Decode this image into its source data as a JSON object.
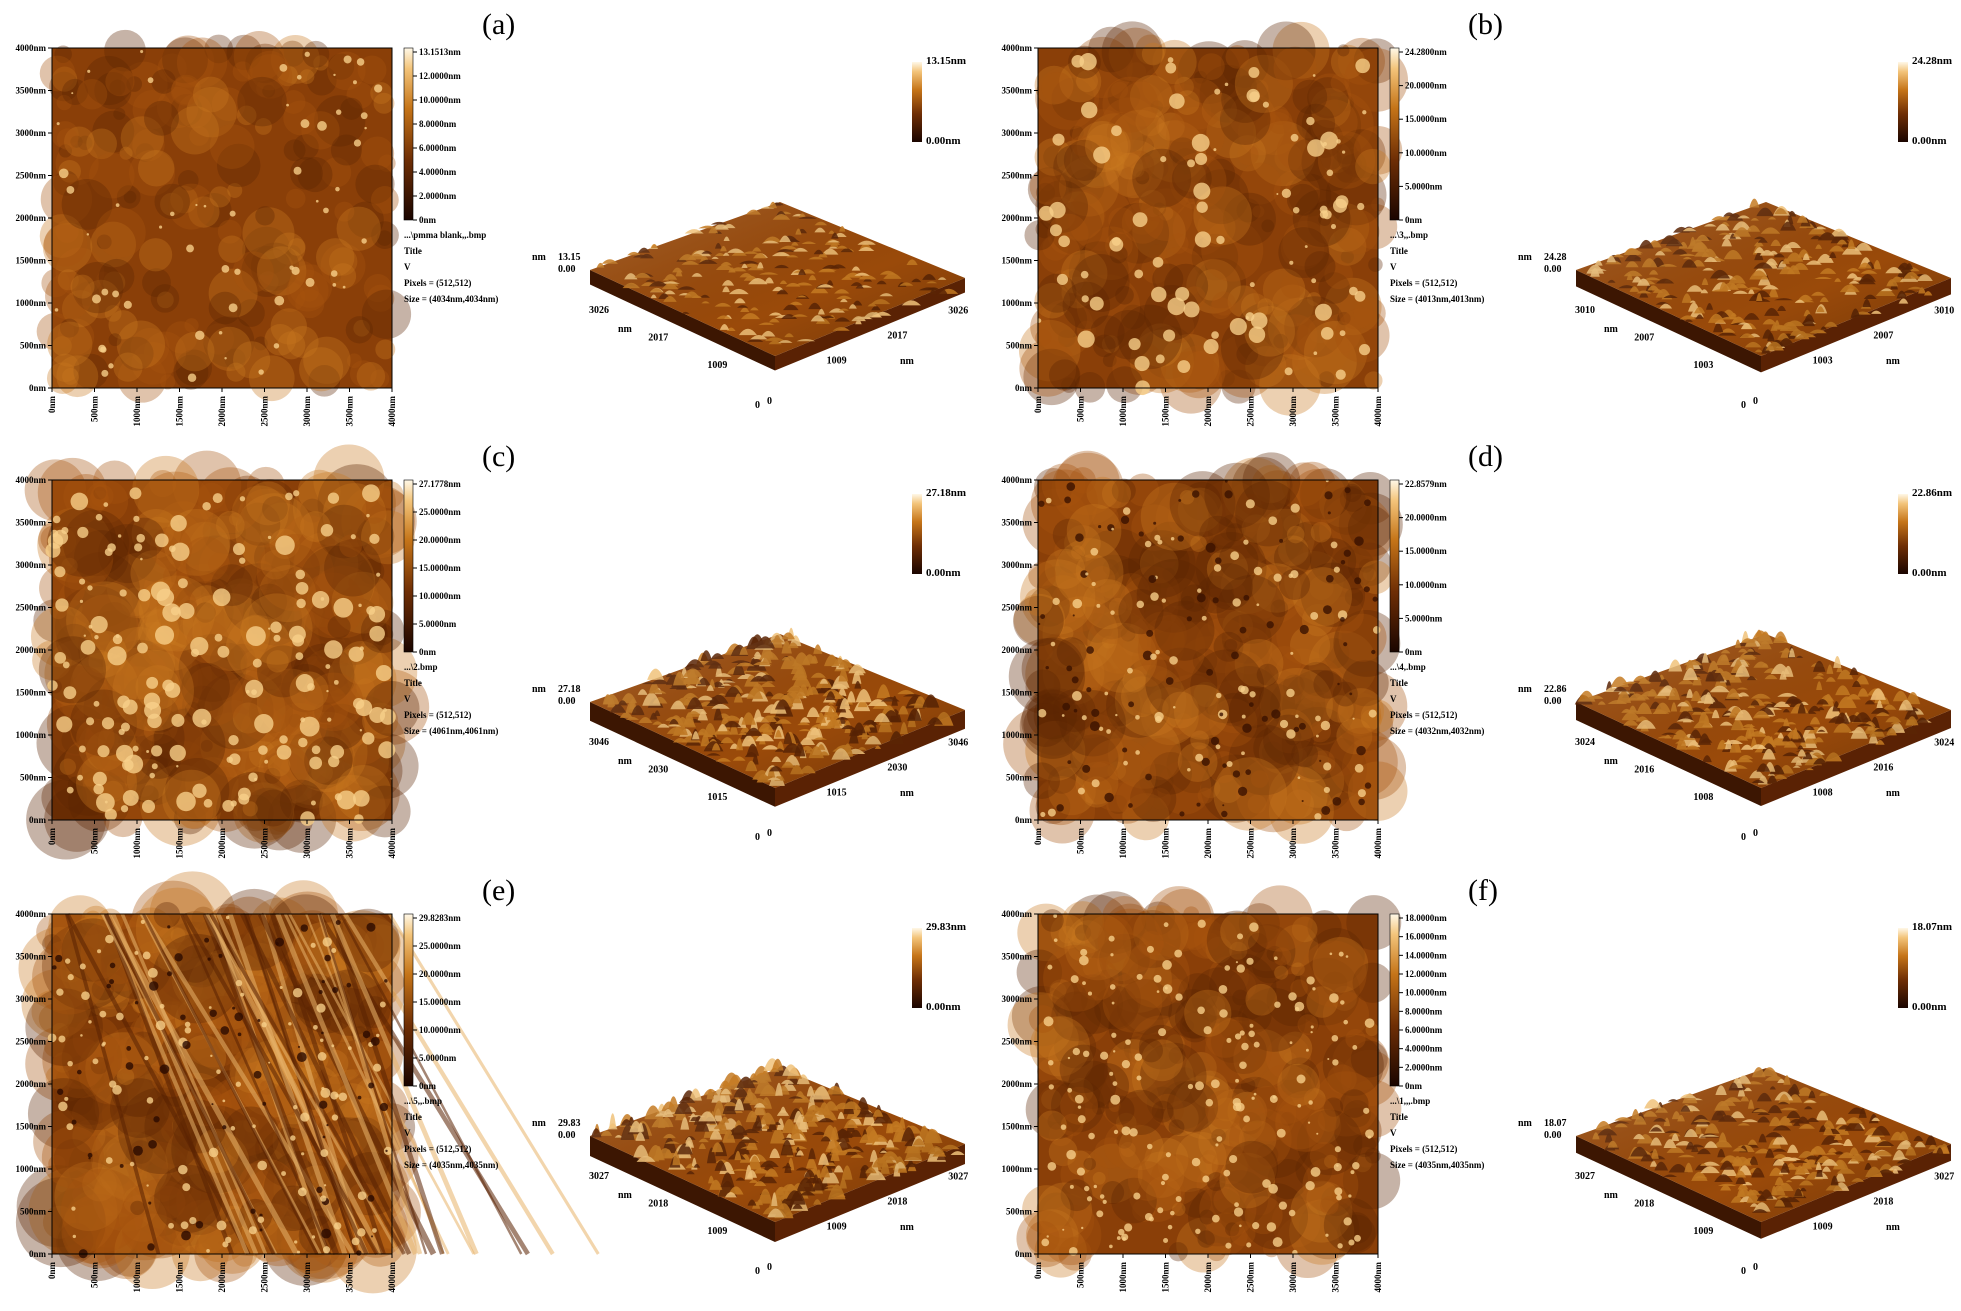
{
  "panels": [
    {
      "letter": "(a)",
      "y_ticks": [
        "4000nm",
        "3500nm",
        "3000nm",
        "2500nm",
        "2000nm",
        "1500nm",
        "1000nm",
        "500nm",
        "0nm"
      ],
      "x_ticks": [
        "0nm",
        "500nm",
        "1000nm",
        "1500nm",
        "2000nm",
        "2500nm",
        "3000nm",
        "3500nm",
        "4000nm"
      ],
      "cbar_labels": [
        "13.1513nm",
        "12.0000nm",
        "10.0000nm",
        "8.0000nm",
        "6.0000nm",
        "4.0000nm",
        "2.0000nm",
        "0nm"
      ],
      "info": [
        "...\\pmma blank,,.bmp",
        "Title",
        "V",
        "Pixels = (512,512)",
        "Size = (4034nm,4034nm)"
      ],
      "max_label": "13.15nm",
      "min_label": "0.00nm",
      "z_labels": [
        "13.15",
        "0.00"
      ],
      "axis_ticks": [
        "3026",
        "2017",
        "1009"
      ],
      "roughness": 0.32,
      "particles": "few"
    },
    {
      "letter": "(b)",
      "y_ticks": [
        "4000nm",
        "3500nm",
        "3000nm",
        "2500nm",
        "2000nm",
        "1500nm",
        "1000nm",
        "500nm",
        "0nm"
      ],
      "x_ticks": [
        "0nm",
        "500nm",
        "1000nm",
        "1500nm",
        "2000nm",
        "2500nm",
        "3000nm",
        "3500nm",
        "4000nm"
      ],
      "cbar_labels": [
        "24.2800nm",
        "20.0000nm",
        "15.0000nm",
        "10.0000nm",
        "5.0000nm",
        "0nm"
      ],
      "info": [
        "...\\3,,.bmp",
        "Title",
        "V",
        "Pixels = (512,512)",
        "Size = (4013nm,4013nm)"
      ],
      "max_label": "24.28nm",
      "min_label": "0.00nm",
      "z_labels": [
        "24.28",
        "0.00"
      ],
      "axis_ticks": [
        "3010",
        "2007",
        "1003"
      ],
      "roughness": 0.55,
      "particles": "blobs"
    },
    {
      "letter": "(c)",
      "y_ticks": [
        "4000nm",
        "3500nm",
        "3000nm",
        "2500nm",
        "2000nm",
        "1500nm",
        "1000nm",
        "500nm",
        "0nm"
      ],
      "x_ticks": [
        "0nm",
        "500nm",
        "1000nm",
        "1500nm",
        "2000nm",
        "2500nm",
        "3000nm",
        "3500nm",
        "4000nm"
      ],
      "cbar_labels": [
        "27.1778nm",
        "25.0000nm",
        "20.0000nm",
        "15.0000nm",
        "10.0000nm",
        "5.0000nm",
        "0nm"
      ],
      "info": [
        "...\\2.bmp",
        "Title",
        "V",
        "Pixels = (512,512)",
        "Size = (4061nm,4061nm)"
      ],
      "max_label": "27.18nm",
      "min_label": "0.00nm",
      "z_labels": [
        "27.18",
        "0.00"
      ],
      "axis_ticks": [
        "3046",
        "2030",
        "1015"
      ],
      "roughness": 0.85,
      "particles": "grains"
    },
    {
      "letter": "(d)",
      "y_ticks": [
        "4000nm",
        "3500nm",
        "3000nm",
        "2500nm",
        "2000nm",
        "1500nm",
        "1000nm",
        "500nm",
        "0nm"
      ],
      "x_ticks": [
        "0nm",
        "500nm",
        "1000nm",
        "1500nm",
        "2000nm",
        "2500nm",
        "3000nm",
        "3500nm",
        "4000nm"
      ],
      "cbar_labels": [
        "22.8579nm",
        "20.0000nm",
        "15.0000nm",
        "10.0000nm",
        "5.0000nm",
        "0nm"
      ],
      "info": [
        "...\\4,.bmp",
        "Title",
        "V",
        "Pixels = (512,512)",
        "Size = (4032nm,4032nm)"
      ],
      "max_label": "22.86nm",
      "min_label": "0.00nm",
      "z_labels": [
        "22.86",
        "0.00"
      ],
      "axis_ticks": [
        "3024",
        "2016",
        "1008"
      ],
      "roughness": 0.75,
      "particles": "pits"
    },
    {
      "letter": "(e)",
      "y_ticks": [
        "4000nm",
        "3500nm",
        "3000nm",
        "2500nm",
        "2000nm",
        "1500nm",
        "1000nm",
        "500nm",
        "0nm"
      ],
      "x_ticks": [
        "0nm",
        "500nm",
        "1000nm",
        "1500nm",
        "2000nm",
        "2500nm",
        "3000nm",
        "3500nm",
        "4000nm"
      ],
      "cbar_labels": [
        "29.8283nm",
        "25.0000nm",
        "20.0000nm",
        "15.0000nm",
        "10.0000nm",
        "5.0000nm",
        "0nm"
      ],
      "info": [
        "...\\5,,.bmp",
        "Title",
        "V",
        "Pixels = (512,512)",
        "Size = (4035nm,4035nm)"
      ],
      "max_label": "29.83nm",
      "min_label": "0.00nm",
      "z_labels": [
        "29.83",
        "0.00"
      ],
      "axis_ticks": [
        "3027",
        "2018",
        "1009"
      ],
      "roughness": 1.0,
      "particles": "streaks"
    },
    {
      "letter": "(f)",
      "y_ticks": [
        "4000nm",
        "3500nm",
        "3000nm",
        "2500nm",
        "2000nm",
        "1500nm",
        "1000nm",
        "500nm",
        "0nm"
      ],
      "x_ticks": [
        "0nm",
        "500nm",
        "1000nm",
        "1500nm",
        "2000nm",
        "2500nm",
        "3000nm",
        "3500nm",
        "4000nm"
      ],
      "cbar_labels": [
        "18.0000nm",
        "16.0000nm",
        "14.0000nm",
        "12.0000nm",
        "10.0000nm",
        "8.0000nm",
        "6.0000nm",
        "4.0000nm",
        "2.0000nm",
        "0nm"
      ],
      "info": [
        "...\\1,,,.bmp",
        "Title",
        "V",
        "Pixels = (512,512)",
        "Size = (4035nm,4035nm)"
      ],
      "max_label": "18.07nm",
      "min_label": "0.00nm",
      "z_labels": [
        "18.07",
        "0.00"
      ],
      "axis_ticks": [
        "3027",
        "2018",
        "1009"
      ],
      "roughness": 0.6,
      "particles": "dots"
    }
  ],
  "axis_unit": "nm",
  "origin_label": "0",
  "colors": {
    "dark": "#1a0500",
    "mid": "#9a4a0a",
    "bright": "#d98a2a",
    "highlight": "#fff4d6"
  }
}
